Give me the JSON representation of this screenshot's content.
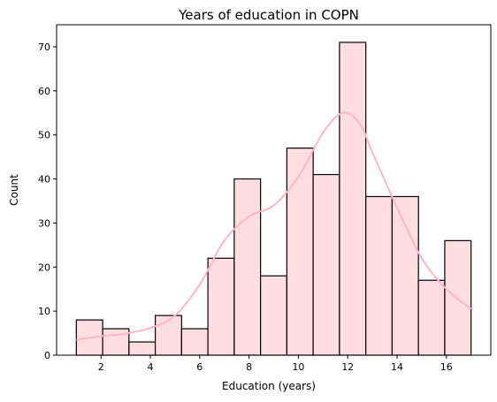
{
  "chart_data": {
    "type": "histogram",
    "title": "Years of education in COPN",
    "xlabel": "Education (years)",
    "ylabel": "Count",
    "xlim": [
      0.2,
      17.8
    ],
    "ylim": [
      0,
      75
    ],
    "xticks": [
      2,
      4,
      6,
      8,
      10,
      12,
      14,
      16
    ],
    "yticks": [
      0,
      10,
      20,
      30,
      40,
      50,
      60,
      70
    ],
    "bin_edges": [
      1.0,
      2.0667,
      3.1333,
      4.2,
      5.2667,
      6.3333,
      7.4,
      8.4667,
      9.5333,
      10.6,
      11.6667,
      12.7333,
      13.8,
      14.8667,
      15.9333,
      17.0
    ],
    "counts": [
      8,
      6,
      3,
      9,
      6,
      22,
      40,
      18,
      47,
      41,
      71,
      36,
      36,
      17,
      26
    ],
    "kde": {
      "x": [
        1.0,
        2.0,
        3.0,
        4.0,
        5.0,
        6.0,
        7.0,
        8.0,
        9.0,
        10.0,
        11.0,
        11.8,
        12.5,
        13.0,
        14.0,
        15.0,
        16.0,
        17.0
      ],
      "y": [
        3.5,
        4.3,
        4.9,
        6.2,
        9.0,
        16.0,
        26.0,
        31.5,
        34.0,
        40.5,
        50.5,
        55.0,
        52.5,
        46.0,
        33.5,
        22.0,
        15.0,
        10.5
      ]
    },
    "grid": false,
    "colors": {
      "bar_fill": "#ffdde3",
      "bar_edge": "#000000",
      "kde_line": "#ffb6c8"
    }
  }
}
